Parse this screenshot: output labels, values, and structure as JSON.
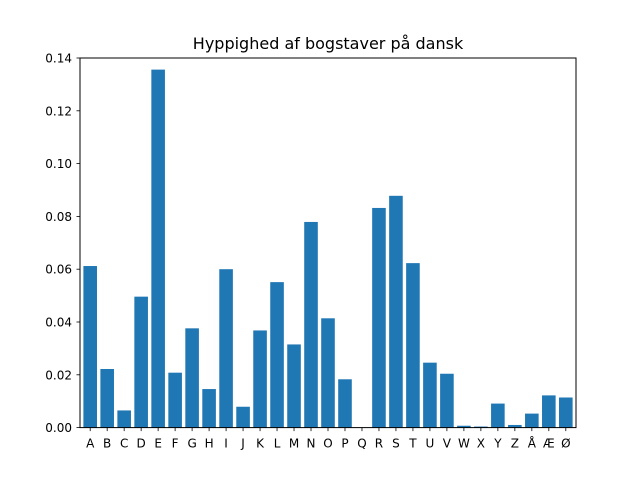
{
  "chart_data": {
    "type": "bar",
    "title": "Hyppighed af bogstaver på dansk",
    "xlabel": "",
    "ylabel": "",
    "categories": [
      "A",
      "B",
      "C",
      "D",
      "E",
      "F",
      "G",
      "H",
      "I",
      "J",
      "K",
      "L",
      "M",
      "N",
      "O",
      "P",
      "Q",
      "R",
      "S",
      "T",
      "U",
      "V",
      "W",
      "X",
      "Y",
      "Z",
      "Å",
      "Æ",
      "Ø"
    ],
    "values": [
      0.0612,
      0.0222,
      0.0065,
      0.0496,
      0.1356,
      0.0208,
      0.0376,
      0.0146,
      0.06,
      0.0079,
      0.0368,
      0.0551,
      0.0315,
      0.0779,
      0.0414,
      0.0183,
      0.0,
      0.0832,
      0.0878,
      0.0623,
      0.0246,
      0.0204,
      0.0007,
      0.0004,
      0.0091,
      0.001,
      0.0053,
      0.0122,
      0.0114
    ],
    "ylim": [
      0,
      0.14
    ],
    "yticks": [
      "0.00",
      "0.02",
      "0.04",
      "0.06",
      "0.08",
      "0.10",
      "0.12",
      "0.14"
    ],
    "ytick_values": [
      0,
      0.02,
      0.04,
      0.06,
      0.08,
      0.1,
      0.12,
      0.14
    ],
    "bar_color": "#1f77b4",
    "grid": false
  }
}
